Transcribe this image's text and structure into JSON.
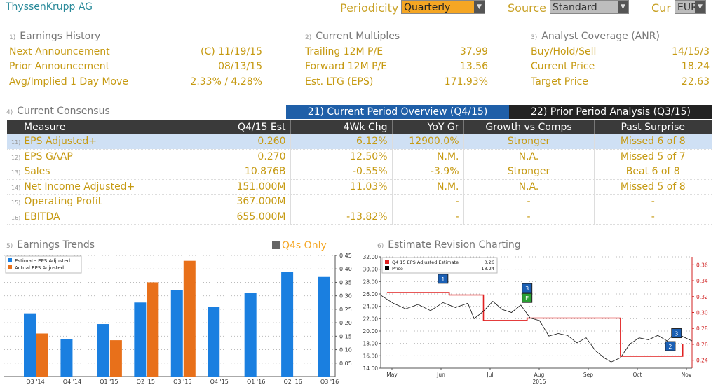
{
  "header": {
    "company": "ThyssenKrupp AG",
    "periodicity_label": "Periodicity",
    "periodicity_value": "Quarterly",
    "source_label": "Source",
    "source_value": "Standard",
    "cur_label": "Cur",
    "cur_value": "EUR"
  },
  "earnings_history": {
    "num": "1)",
    "title": "Earnings History",
    "rows": [
      {
        "label": "Next Announcement",
        "value": "(C)  11/19/15"
      },
      {
        "label": "Prior Announcement",
        "value": "08/13/15"
      },
      {
        "label": "Avg/Implied 1 Day Move",
        "value": "2.33% / 4.28%"
      }
    ]
  },
  "current_multiples": {
    "num": "2)",
    "title": "Current Multiples",
    "rows": [
      {
        "label": "Trailing 12M P/E",
        "value": "37.99"
      },
      {
        "label": "Forward 12M P/E",
        "value": "13.56"
      },
      {
        "label": "Est. LTG (EPS)",
        "value": "171.93%"
      }
    ]
  },
  "analyst_coverage": {
    "num": "3)",
    "title": "Analyst Coverage (ANR)",
    "rows": [
      {
        "label": "Buy/Hold/Sell",
        "value": "14/15/3"
      },
      {
        "label": "Current Price",
        "value": "18.24"
      },
      {
        "label": "Target Price",
        "value": "22.63"
      }
    ]
  },
  "consensus": {
    "num": "4)",
    "title": "Current Consensus",
    "tab_current": "21) Current Period Overview (Q4/15)",
    "tab_prior": "22) Prior Period Analysis (Q3/15)",
    "columns": [
      "Measure",
      "Q4/15 Est",
      "4Wk Chg",
      "YoY Gr",
      "Growth vs Comps",
      "Past Surprise"
    ],
    "rows": [
      {
        "num": "11)",
        "measure": "EPS Adjusted+",
        "est": "0.260",
        "chg": "6.12%",
        "yoy": "12900.0%",
        "comps": "Stronger",
        "surprise": "Missed 6 of 8"
      },
      {
        "num": "12)",
        "measure": "EPS GAAP",
        "est": "0.270",
        "chg": "12.50%",
        "yoy": "N.M.",
        "comps": "N.A.",
        "surprise": "Missed 5 of 7"
      },
      {
        "num": "13)",
        "measure": "Sales",
        "est": "10.876B",
        "chg": "-0.55%",
        "yoy": "-3.9%",
        "comps": "Stronger",
        "surprise": "Beat 6 of 8"
      },
      {
        "num": "14)",
        "measure": "Net Income Adjusted+",
        "est": "151.000M",
        "chg": "11.03%",
        "yoy": "N.M.",
        "comps": "N.A.",
        "surprise": "Missed 5 of 8"
      },
      {
        "num": "15)",
        "measure": "Operating Profit",
        "est": "367.000M",
        "chg": "",
        "yoy": "-",
        "comps": "-",
        "surprise": "-"
      },
      {
        "num": "16)",
        "measure": "EBITDA",
        "est": "655.000M",
        "chg": "-13.82%",
        "yoy": "-",
        "comps": "-",
        "surprise": "-"
      }
    ]
  },
  "trends": {
    "num": "5)",
    "title": "Earnings Trends",
    "q4s_label": "Q4s Only"
  },
  "revision": {
    "num": "6)",
    "title": "Estimate Revision Charting"
  },
  "chart_data": [
    {
      "type": "bar",
      "categories": [
        "Q3 '14",
        "Q4 '14",
        "Q1 '15",
        "Q2 '15",
        "Q3 '15",
        "Q4 '15",
        "Q1 '16",
        "Q2 '16",
        "Q3 '16"
      ],
      "series": [
        {
          "name": "Estimate EPS Adjusted",
          "color": "#1a7fe0",
          "values": [
            0.235,
            0.14,
            0.195,
            0.275,
            0.32,
            0.26,
            0.31,
            0.39,
            0.37
          ]
        },
        {
          "name": "Actual EPS Adjusted",
          "color": "#e8701a",
          "values": [
            0.16,
            null,
            0.135,
            0.35,
            0.43,
            null,
            null,
            null,
            null
          ]
        }
      ],
      "ylim": [
        0,
        0.45
      ],
      "yticks": [
        "0.05",
        "0.10",
        "0.15",
        "0.20",
        "0.25",
        "0.30",
        "0.35",
        "0.40",
        "0.45"
      ],
      "legend": "top-left"
    },
    {
      "type": "line",
      "title": "",
      "xlabel": "2015",
      "x_ticks": [
        "May",
        "Jun",
        "Jul",
        "Aug",
        "Sep",
        "Oct",
        "Nov"
      ],
      "left_axis": {
        "ylim": [
          14,
          32
        ],
        "ticks": [
          "14.00",
          "16.00",
          "18.00",
          "20.00",
          "22.00",
          "24.00",
          "26.00",
          "28.00",
          "30.00",
          "32.00"
        ]
      },
      "right_axis": {
        "ylim": [
          0.23,
          0.37
        ],
        "ticks": [
          "0.24",
          "0.26",
          "0.28",
          "0.30",
          "0.32",
          "0.34",
          "0.36"
        ]
      },
      "legend": [
        {
          "name": "Q4 15 EPS Adjusted Estimate",
          "value": "0.26",
          "color": "#e02020"
        },
        {
          "name": "Price",
          "value": "18.24",
          "color": "#000000"
        }
      ],
      "series": [
        {
          "name": "Q4 15 EPS Adjusted Estimate",
          "axis": "right",
          "points": [
            [
              0.02,
              0.325
            ],
            [
              0.22,
              0.325
            ],
            [
              0.22,
              0.322
            ],
            [
              0.33,
              0.322
            ],
            [
              0.33,
              0.29
            ],
            [
              0.47,
              0.29
            ],
            [
              0.47,
              0.293
            ],
            [
              0.77,
              0.293
            ],
            [
              0.77,
              0.245
            ],
            [
              0.97,
              0.245
            ],
            [
              0.97,
              0.26
            ]
          ]
        },
        {
          "name": "Price",
          "axis": "left",
          "points": [
            [
              0.0,
              25.8
            ],
            [
              0.04,
              24.5
            ],
            [
              0.08,
              23.6
            ],
            [
              0.12,
              24.3
            ],
            [
              0.16,
              23.3
            ],
            [
              0.2,
              24.6
            ],
            [
              0.24,
              23.8
            ],
            [
              0.28,
              24.5
            ],
            [
              0.3,
              22.0
            ],
            [
              0.33,
              23.2
            ],
            [
              0.36,
              24.8
            ],
            [
              0.39,
              23.5
            ],
            [
              0.42,
              23.0
            ],
            [
              0.45,
              24.2
            ],
            [
              0.48,
              22.1
            ],
            [
              0.51,
              21.7
            ],
            [
              0.54,
              19.2
            ],
            [
              0.57,
              19.6
            ],
            [
              0.6,
              19.3
            ],
            [
              0.63,
              18.1
            ],
            [
              0.66,
              18.9
            ],
            [
              0.69,
              16.8
            ],
            [
              0.72,
              15.6
            ],
            [
              0.74,
              15.0
            ],
            [
              0.77,
              15.7
            ],
            [
              0.8,
              17.9
            ],
            [
              0.83,
              18.9
            ],
            [
              0.86,
              18.6
            ],
            [
              0.89,
              19.3
            ],
            [
              0.92,
              18.4
            ],
            [
              0.95,
              20.0
            ],
            [
              0.97,
              19.1
            ],
            [
              1.0,
              18.4
            ]
          ]
        }
      ],
      "markers": [
        {
          "label": "1",
          "color": "#1a5fb4",
          "x": 0.2,
          "y": 28.4
        },
        {
          "label": "3",
          "color": "#1a5fb4",
          "x": 0.47,
          "y": 26.9
        },
        {
          "label": "E",
          "color": "#2aa034",
          "x": 0.47,
          "y": 25.3
        },
        {
          "label": "3",
          "color": "#1a5fb4",
          "x": 0.95,
          "y": 19.6
        },
        {
          "label": "2",
          "color": "#1a5fb4",
          "x": 0.93,
          "y": 17.5
        }
      ]
    }
  ]
}
